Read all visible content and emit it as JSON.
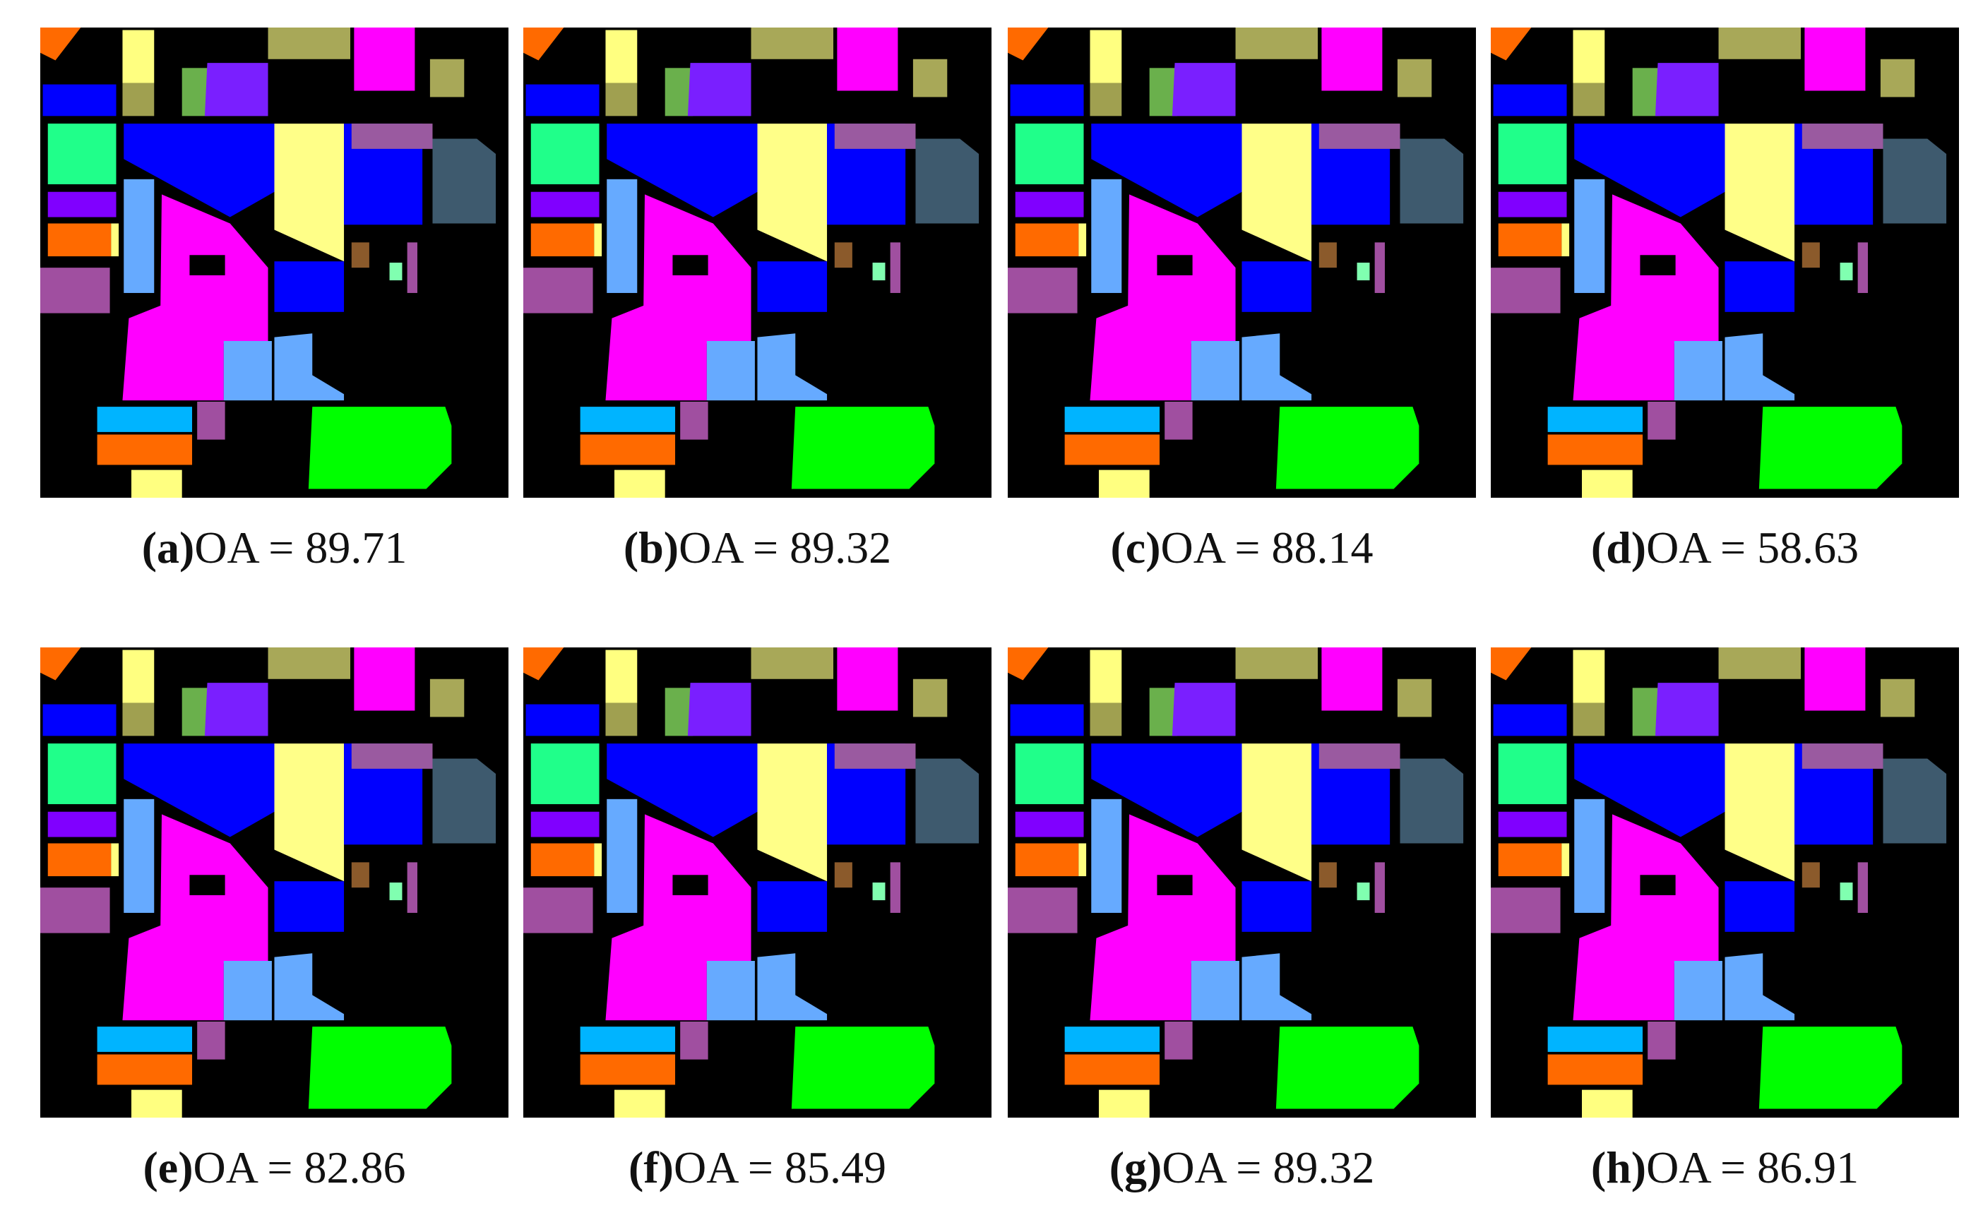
{
  "panels": [
    {
      "label": "(a)",
      "text": "OA = 89.71"
    },
    {
      "label": "(b)",
      "text": "OA = 89.32"
    },
    {
      "label": "(c)",
      "text": "OA = 88.14"
    },
    {
      "label": "(d)",
      "text": "OA = 58.63"
    },
    {
      "label": "(e)",
      "text": "OA = 82.86"
    },
    {
      "label": "(f)",
      "text": "OA = 85.49"
    },
    {
      "label": "(g)",
      "text": "OA = 89.32"
    },
    {
      "label": "(h)",
      "text": "OA = 86.91"
    }
  ]
}
